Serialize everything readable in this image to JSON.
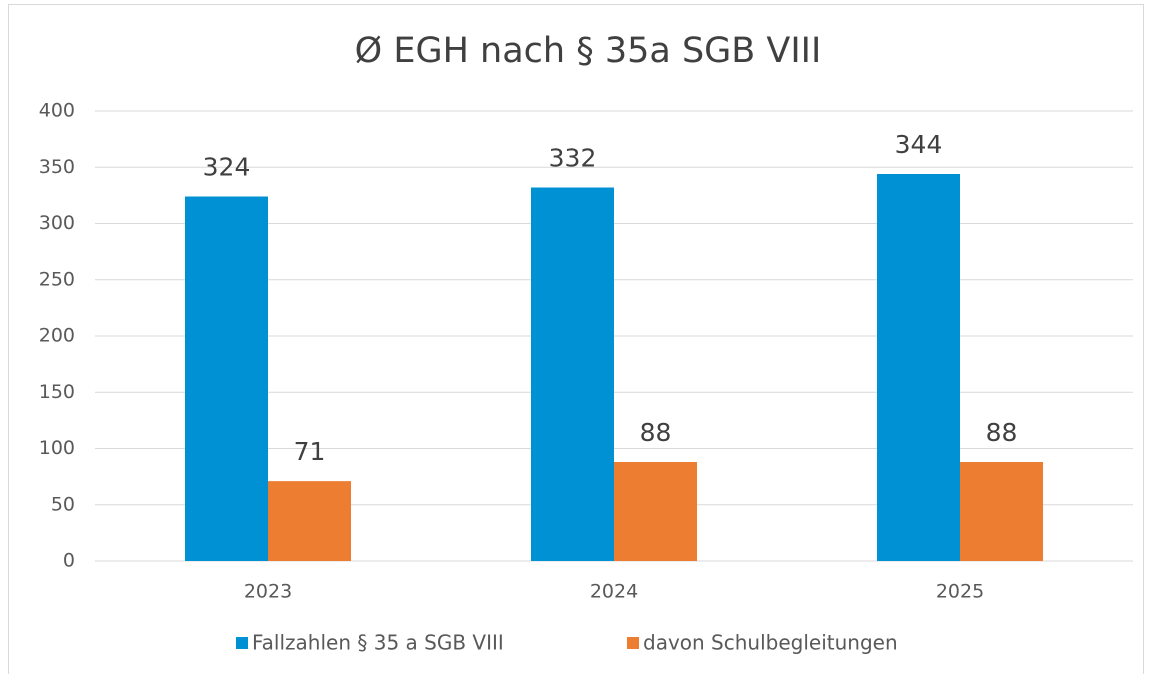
{
  "chart_data": {
    "type": "bar",
    "title": "Ø EGH nach § 35a SGB VIII",
    "categories": [
      "2023",
      "2024",
      "2025"
    ],
    "series": [
      {
        "name": "Fallzahlen § 35 a SGB VIII",
        "color": "#0091d5",
        "values": [
          324,
          332,
          344
        ]
      },
      {
        "name": "davon Schulbegleitungen",
        "color": "#ed7d31",
        "values": [
          71,
          88,
          88
        ]
      }
    ],
    "ylim": [
      0,
      400
    ],
    "yticks": [
      0,
      50,
      100,
      150,
      200,
      250,
      300,
      350,
      400
    ],
    "grid": true,
    "legend": "bottom"
  }
}
